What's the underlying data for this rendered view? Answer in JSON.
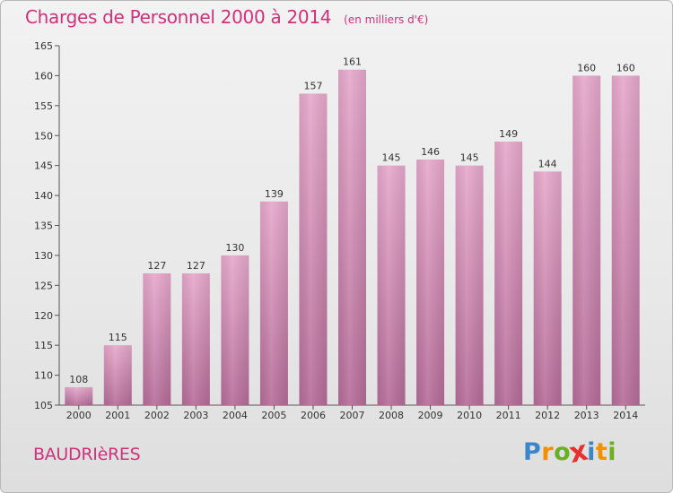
{
  "header": {
    "title": "Charges de Personnel 2000 à 2014",
    "unit_note": "(en milliers d'€)"
  },
  "footer": {
    "place": "BAUDRIèRES",
    "logo_text": [
      "P",
      "r",
      "o",
      "x",
      "i",
      "t",
      "i"
    ],
    "logo_colors": [
      "#3a86c8",
      "#f29100",
      "#6ab023",
      "#e8312f",
      "#3a86c8",
      "#f29100",
      "#6ab023"
    ]
  },
  "chart_data": {
    "type": "bar",
    "title": "Charges de Personnel 2000 à 2014",
    "categories": [
      "2000",
      "2001",
      "2002",
      "2003",
      "2004",
      "2005",
      "2006",
      "2007",
      "2008",
      "2009",
      "2010",
      "2011",
      "2012",
      "2013",
      "2014"
    ],
    "values": [
      108,
      115,
      127,
      127,
      130,
      139,
      157,
      161,
      145,
      146,
      145,
      149,
      144,
      160,
      160
    ],
    "ylim": [
      105,
      165
    ],
    "yticks": [
      105,
      110,
      115,
      120,
      125,
      130,
      135,
      140,
      145,
      150,
      155,
      160,
      165
    ],
    "grid": false,
    "legend": "none",
    "colors": {
      "bar_top": "#e6a8cb",
      "bar_bottom": "#b56c98",
      "text": "#d0317b"
    }
  }
}
